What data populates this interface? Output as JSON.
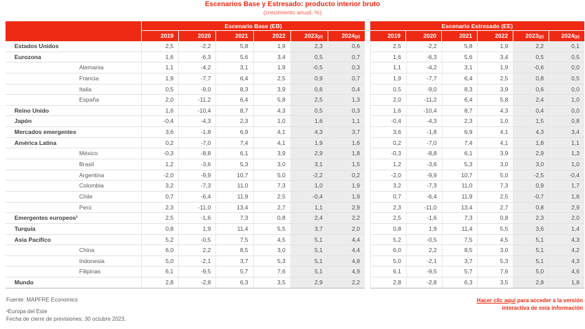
{
  "title": "Escenarios Base y Estresado: producto interior bruto",
  "subtitle": "(crecimiento anual, %)",
  "colors": {
    "brand_red": "#ee2a14",
    "shaded_column": "#ececec",
    "body_text": "#4e4e4e"
  },
  "chart_data": {
    "type": "table",
    "title": "Escenarios Base y Estresado: producto interior bruto",
    "subtitle": "(crecimiento anual, %)",
    "column_groups": [
      {
        "id": "base",
        "label": "Escenario Base (EB)",
        "columns": [
          "2019",
          "2020",
          "2021",
          "2022",
          "2023(p)",
          "2024(p)"
        ]
      },
      {
        "id": "stressed",
        "label": "Escenario Estresado (EE)",
        "columns": [
          "2019",
          "2020",
          "2021",
          "2022",
          "2023(p)",
          "2024(p)"
        ]
      }
    ],
    "shaded_columns": [
      4,
      5
    ],
    "rows": [
      {
        "label": "Estados Unidos",
        "level": 0,
        "base": [
          "2,5",
          "-2,2",
          "5,8",
          "1,9",
          "2,3",
          "0,6"
        ],
        "stressed": [
          "2,5",
          "-2,2",
          "5,8",
          "1,9",
          "2,2",
          "0,1"
        ]
      },
      {
        "label": "Eurozona",
        "level": 0,
        "base": [
          "1,6",
          "-6,3",
          "5,6",
          "3,4",
          "0,5",
          "0,7"
        ],
        "stressed": [
          "1,6",
          "-6,3",
          "5,6",
          "3,4",
          "0,5",
          "0,5"
        ]
      },
      {
        "label": "Alemania",
        "level": 1,
        "base": [
          "1,1",
          "-4,2",
          "3,1",
          "1,9",
          "-0,5",
          "0,3"
        ],
        "stressed": [
          "1,1",
          "-4,2",
          "3,1",
          "1,9",
          "-0,6",
          "0,0"
        ]
      },
      {
        "label": "Francia",
        "level": 1,
        "base": [
          "1,9",
          "-7,7",
          "6,4",
          "2,5",
          "0,9",
          "0,7"
        ],
        "stressed": [
          "1,9",
          "-7,7",
          "6,4",
          "2,5",
          "0,8",
          "0,5"
        ]
      },
      {
        "label": "Italia",
        "level": 1,
        "base": [
          "0,5",
          "-9,0",
          "8,3",
          "3,9",
          "0,6",
          "0,4"
        ],
        "stressed": [
          "0,5",
          "-9,0",
          "8,3",
          "3,9",
          "0,6",
          "0,0"
        ]
      },
      {
        "label": "España",
        "level": 1,
        "base": [
          "2,0",
          "-11,2",
          "6,4",
          "5,8",
          "2,5",
          "1,3"
        ],
        "stressed": [
          "2,0",
          "-11,2",
          "6,4",
          "5,8",
          "2,4",
          "1,0"
        ]
      },
      {
        "label": "Reino Unido",
        "level": 0,
        "base": [
          "1,6",
          "-10,4",
          "8,7",
          "4,3",
          "0,5",
          "0,3"
        ],
        "stressed": [
          "1,6",
          "-10,4",
          "8,7",
          "4,3",
          "0,4",
          "0,0"
        ]
      },
      {
        "label": "Japón",
        "level": 0,
        "base": [
          "-0,4",
          "-4,3",
          "2,3",
          "1,0",
          "1,6",
          "1,1"
        ],
        "stressed": [
          "-0,4",
          "-4,3",
          "2,3",
          "1,0",
          "1,5",
          "0,8"
        ]
      },
      {
        "label": "Mercados emergentes",
        "level": 0,
        "base": [
          "3,6",
          "-1,8",
          "6,9",
          "4,1",
          "4,3",
          "3,7"
        ],
        "stressed": [
          "3,6",
          "-1,8",
          "6,9",
          "4,1",
          "4,3",
          "3,4"
        ]
      },
      {
        "label": "América Latina",
        "level": 0,
        "base": [
          "0,2",
          "-7,0",
          "7,4",
          "4,1",
          "1,9",
          "1,6"
        ],
        "stressed": [
          "0,2",
          "-7,0",
          "7,4",
          "4,1",
          "1,8",
          "1,1"
        ]
      },
      {
        "label": "México",
        "level": 1,
        "base": [
          "-0,3",
          "-8,8",
          "6,1",
          "3,9",
          "2,9",
          "1,8"
        ],
        "stressed": [
          "-0,3",
          "-8,8",
          "6,1",
          "3,9",
          "2,9",
          "1,3"
        ]
      },
      {
        "label": "Brasil",
        "level": 1,
        "base": [
          "1,2",
          "-3,6",
          "5,3",
          "3,0",
          "3,1",
          "1,5"
        ],
        "stressed": [
          "1,2",
          "-3,6",
          "5,3",
          "3,0",
          "3,0",
          "1,0"
        ]
      },
      {
        "label": "Argentina",
        "level": 1,
        "base": [
          "-2,0",
          "-9,9",
          "10,7",
          "5,0",
          "-2,2",
          "0,2"
        ],
        "stressed": [
          "-2,0",
          "-9,9",
          "10,7",
          "5,0",
          "-2,5",
          "-0,4"
        ]
      },
      {
        "label": "Colombia",
        "level": 1,
        "base": [
          "3,2",
          "-7,3",
          "11,0",
          "7,3",
          "1,0",
          "1,9"
        ],
        "stressed": [
          "3,2",
          "-7,3",
          "11,0",
          "7,3",
          "0,9",
          "1,7"
        ]
      },
      {
        "label": "Chile",
        "level": 1,
        "base": [
          "0,7",
          "-6,4",
          "11,9",
          "2,5",
          "-0,4",
          "1,9"
        ],
        "stressed": [
          "0,7",
          "-6,4",
          "11,9",
          "2,5",
          "-0,7",
          "1,6"
        ]
      },
      {
        "label": "Perú",
        "level": 1,
        "base": [
          "2,3",
          "-11,0",
          "13,4",
          "2,7",
          "1,1",
          "2,9"
        ],
        "stressed": [
          "2,3",
          "-11,0",
          "13,4",
          "2,7",
          "0,8",
          "2,9"
        ]
      },
      {
        "label": "Emergentes europeos¹",
        "level": 0,
        "base": [
          "2,5",
          "-1,6",
          "7,3",
          "0,8",
          "2,4",
          "2,2"
        ],
        "stressed": [
          "2,5",
          "-1,6",
          "7,3",
          "0,8",
          "2,3",
          "2,0"
        ]
      },
      {
        "label": "Turquía",
        "level": 0,
        "base": [
          "0,8",
          "1,9",
          "11,4",
          "5,5",
          "3,7",
          "2,0"
        ],
        "stressed": [
          "0,8",
          "1,9",
          "11,4",
          "5,5",
          "3,6",
          "1,4"
        ]
      },
      {
        "label": "Asia Pacífico",
        "level": 0,
        "base": [
          "5,2",
          "-0,5",
          "7,5",
          "4,5",
          "5,1",
          "4,4"
        ],
        "stressed": [
          "5,2",
          "-0,5",
          "7,5",
          "4,5",
          "5,1",
          "4,3"
        ]
      },
      {
        "label": "China",
        "level": 1,
        "base": [
          "6,0",
          "2,2",
          "8,5",
          "3,0",
          "5,1",
          "4,4"
        ],
        "stressed": [
          "6,0",
          "2,2",
          "8,5",
          "3,0",
          "5,1",
          "4,2"
        ]
      },
      {
        "label": "Indonesia",
        "level": 1,
        "base": [
          "5,0",
          "-2,1",
          "3,7",
          "5,3",
          "5,1",
          "4,8"
        ],
        "stressed": [
          "5,0",
          "-2,1",
          "3,7",
          "5,3",
          "5,1",
          "4,3"
        ]
      },
      {
        "label": "Filipinas",
        "level": 1,
        "base": [
          "6,1",
          "-9,5",
          "5,7",
          "7,6",
          "5,1",
          "4,9"
        ],
        "stressed": [
          "6,1",
          "-9,5",
          "5,7",
          "7,6",
          "5,0",
          "4,6"
        ]
      },
      {
        "label": "Mundo",
        "level": 0,
        "base": [
          "2,8",
          "-2,8",
          "6,3",
          "3,5",
          "2,9",
          "2,2"
        ],
        "stressed": [
          "2,8",
          "-2,8",
          "6,3",
          "3,5",
          "2,8",
          "1,8"
        ]
      }
    ]
  },
  "footer": {
    "source": "Fuente: MAPFRE Economics",
    "note1": "¹Europa del Este",
    "note2": "Fecha de cierre de previsiones: 30 octubre 2023."
  },
  "link": {
    "action": "Hacer clic aquí",
    "rest1": " para acceder a la versión",
    "line2": "interactiva de esta información"
  }
}
